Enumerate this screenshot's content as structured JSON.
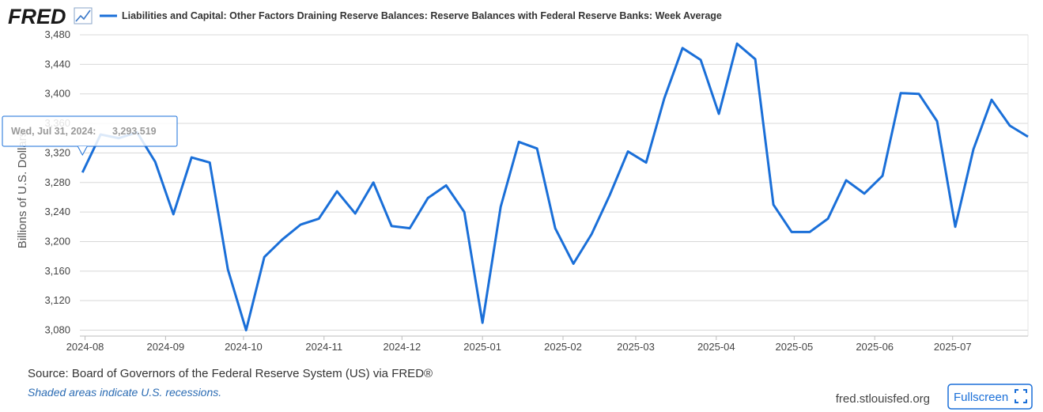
{
  "logo": "FRED",
  "chart_data": {
    "type": "line",
    "series": [
      {
        "name": "Liabilities and Capital: Other Factors Draining Reserve Balances: Reserve Balances with Federal Reserve Banks: Week Average",
        "color": "#1a6fd8",
        "values": [
          3293.519,
          3345,
          3340,
          3348,
          3308,
          3237,
          3314,
          3307,
          3162,
          3080,
          3179,
          3203,
          3223,
          3231,
          3268,
          3238,
          3280,
          3221,
          3218,
          3259,
          3276,
          3240,
          3090,
          3247,
          3335,
          3326,
          3218,
          3170,
          3210,
          3263,
          3322,
          3307,
          3394,
          3462,
          3446,
          3373,
          3468,
          3447,
          3250,
          3213,
          3213,
          3231,
          3283,
          3265,
          3289,
          3401,
          3400,
          3363,
          3220,
          3325,
          3392,
          3357,
          3342
        ]
      }
    ],
    "x": [
      "2024-07-31",
      "2024-08-07",
      "2024-08-14",
      "2024-08-21",
      "2024-08-28",
      "2024-09-04",
      "2024-09-11",
      "2024-09-18",
      "2024-09-25",
      "2024-10-02",
      "2024-10-09",
      "2024-10-16",
      "2024-10-23",
      "2024-10-30",
      "2024-11-06",
      "2024-11-13",
      "2024-11-20",
      "2024-11-27",
      "2024-12-04",
      "2024-12-11",
      "2024-12-18",
      "2024-12-25",
      "2025-01-01",
      "2025-01-08",
      "2025-01-15",
      "2025-01-22",
      "2025-01-29",
      "2025-02-05",
      "2025-02-12",
      "2025-02-19",
      "2025-02-26",
      "2025-03-05",
      "2025-03-12",
      "2025-03-19",
      "2025-03-26",
      "2025-04-02",
      "2025-04-09",
      "2025-04-16",
      "2025-04-23",
      "2025-04-30",
      "2025-05-07",
      "2025-05-14",
      "2025-05-21",
      "2025-05-28",
      "2025-06-04",
      "2025-06-11",
      "2025-06-18",
      "2025-06-25",
      "2025-07-02",
      "2025-07-09",
      "2025-07-16",
      "2025-07-23",
      "2025-07-30"
    ],
    "xlim": [
      "2024-07-30",
      "2025-07-30"
    ],
    "xticks": [
      {
        "value": "2024-08-01",
        "label": "2024-08"
      },
      {
        "value": "2024-09-01",
        "label": "2024-09"
      },
      {
        "value": "2024-10-01",
        "label": "2024-10"
      },
      {
        "value": "2024-11-01",
        "label": "2024-11"
      },
      {
        "value": "2024-12-01",
        "label": "2024-12"
      },
      {
        "value": "2025-01-01",
        "label": "2025-01"
      },
      {
        "value": "2025-02-01",
        "label": "2025-02"
      },
      {
        "value": "2025-03-01",
        "label": "2025-03"
      },
      {
        "value": "2025-04-01",
        "label": "2025-04"
      },
      {
        "value": "2025-05-01",
        "label": "2025-05"
      },
      {
        "value": "2025-06-01",
        "label": "2025-06"
      },
      {
        "value": "2025-07-01",
        "label": "2025-07"
      }
    ],
    "ylabel": "Billions of U.S. Dollars",
    "ylim": [
      3072,
      3480
    ],
    "yticks": [
      {
        "value": 3080,
        "label": "3,080"
      },
      {
        "value": 3120,
        "label": "3,120"
      },
      {
        "value": 3160,
        "label": "3,160"
      },
      {
        "value": 3200,
        "label": "3,200"
      },
      {
        "value": 3240,
        "label": "3,240"
      },
      {
        "value": 3280,
        "label": "3,280"
      },
      {
        "value": 3320,
        "label": "3,320"
      },
      {
        "value": 3360,
        "label": "3,360"
      },
      {
        "value": 3400,
        "label": "3,400"
      },
      {
        "value": 3440,
        "label": "3,440"
      },
      {
        "value": 3480,
        "label": "3,480"
      }
    ],
    "grid": true,
    "tooltip": {
      "label": "Wed, Jul 31, 2024:",
      "value": 3293.519,
      "value_label": "3,293.519"
    }
  },
  "footer": {
    "source": "Source: Board of Governors of the Federal Reserve System (US) via FRED®",
    "note": "Shaded areas indicate U.S. recessions.",
    "site": "fred.stlouisfed.org",
    "button": "Fullscreen"
  }
}
